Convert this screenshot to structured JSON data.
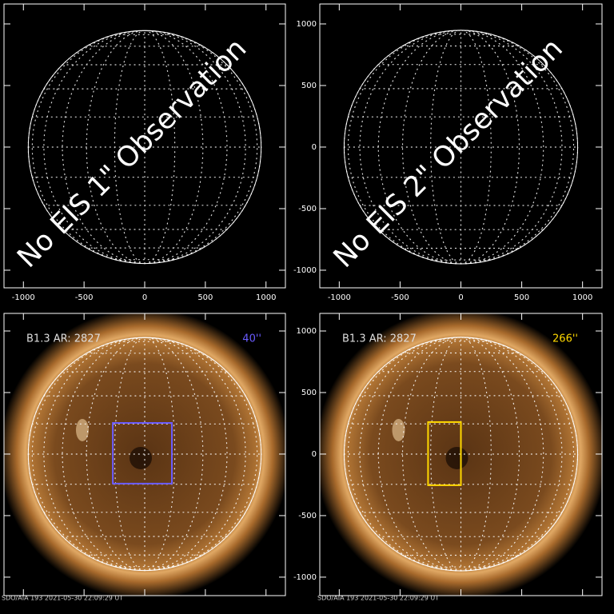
{
  "chart_data": [
    {
      "type": "empty",
      "xlim": [
        -1160,
        1160
      ],
      "ylim": [
        -1143,
        1162
      ],
      "xticks": [
        -1000,
        -500,
        0,
        500,
        1000
      ],
      "yticks": [
        -1000,
        -500,
        0,
        500,
        1000
      ],
      "xtick_labels": true,
      "ytick_labels": false,
      "overlay_text": "No EIS 1\" Observation"
    },
    {
      "type": "empty",
      "xlim": [
        -1160,
        1160
      ],
      "ylim": [
        -1143,
        1162
      ],
      "xticks": [
        -1000,
        -500,
        0,
        500,
        1000
      ],
      "yticks": [
        -1000,
        -500,
        0,
        500,
        1000
      ],
      "xtick_labels": true,
      "ytick_labels": true,
      "overlay_text": "No EIS 2\" Observation"
    },
    {
      "type": "image",
      "xlim": [
        -1160,
        1160
      ],
      "ylim": [
        -1150,
        1143
      ],
      "xticks": [
        -1000,
        -500,
        0,
        500,
        1000
      ],
      "yticks": [
        -1000,
        -500,
        0,
        500,
        1000
      ],
      "xtick_labels": false,
      "ytick_labels": false,
      "label_left": "B1.3 AR: 2827",
      "label_right": "40''",
      "color": "#6a5cff",
      "box": {
        "x": [
          -263,
          224
        ],
        "y": [
          -240,
          253
        ]
      },
      "footer": "SDO/AIA 193 2021-05-30 22:09:29 UT"
    },
    {
      "type": "image",
      "xlim": [
        -1160,
        1160
      ],
      "ylim": [
        -1150,
        1143
      ],
      "xticks": [
        -1000,
        -500,
        0,
        500,
        1000
      ],
      "yticks": [
        -1000,
        -500,
        0,
        500,
        1000
      ],
      "xtick_labels": false,
      "ytick_labels": true,
      "label_left": "B1.3 AR: 2827",
      "label_right": "266''",
      "color": "#ffd800",
      "box": {
        "x": [
          -270,
          0
        ],
        "y": [
          -253,
          260
        ]
      },
      "footer": "SDO/AIA 193 2021-05-30 22:09:29 UT"
    }
  ]
}
